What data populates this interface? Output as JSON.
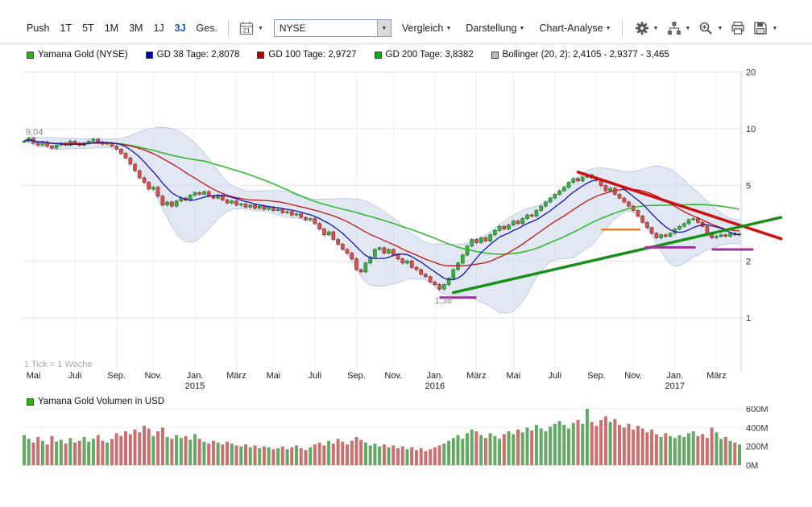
{
  "toolbar": {
    "push_label": "Push",
    "periods": [
      {
        "label": "1T",
        "selected": false
      },
      {
        "label": "5T",
        "selected": false
      },
      {
        "label": "1M",
        "selected": false
      },
      {
        "label": "3M",
        "selected": false
      },
      {
        "label": "1J",
        "selected": false
      },
      {
        "label": "3J",
        "selected": true
      },
      {
        "label": "Ges.",
        "selected": false
      }
    ],
    "calendar_day": "21",
    "exchange_select": {
      "value": "NYSE"
    },
    "menus": [
      {
        "label": "Vergleich"
      },
      {
        "label": "Darstellung"
      },
      {
        "label": "Chart-Analyse"
      }
    ],
    "icon_buttons": [
      {
        "name": "settings",
        "caret": true
      },
      {
        "name": "chart-tools",
        "caret": true
      },
      {
        "name": "zoom-in",
        "caret": true
      },
      {
        "name": "print",
        "caret": false
      },
      {
        "name": "save",
        "caret": true
      }
    ]
  },
  "legend": {
    "items": [
      {
        "label": "Yamana Gold (NYSE)",
        "color": "#2db212"
      },
      {
        "label": "GD 38 Tage: 2,8078",
        "color": "#0000b4"
      },
      {
        "label": "GD 100 Tage: 2,9727",
        "color": "#b40000"
      },
      {
        "label": "GD 200 Tage: 3,8382",
        "color": "#00b400"
      },
      {
        "label": "Bollinger (20, 2): 2,4105 - 2,9377 - 3,465",
        "color": "#a9bad6"
      }
    ]
  },
  "chart_data": {
    "type": "candlestick",
    "x_unit_note": "1 Tick = 1 Woche",
    "y_scale": "log",
    "y_axis_side": "right",
    "y_ticks": [
      "20",
      "10",
      "5",
      "2",
      "1"
    ],
    "candle_up_color": "#3fae46",
    "candle_down_color": "#d25454",
    "x_ticks": [
      {
        "label": "Mai",
        "week": 2
      },
      {
        "label": "Juli",
        "week": 11
      },
      {
        "label": "Sep.",
        "week": 20
      },
      {
        "label": "Nov.",
        "week": 28
      },
      {
        "label": "Jan.",
        "year": "2015",
        "week": 37
      },
      {
        "label": "März",
        "week": 46
      },
      {
        "label": "Mai",
        "week": 54
      },
      {
        "label": "Juli",
        "week": 63
      },
      {
        "label": "Sep.",
        "week": 72
      },
      {
        "label": "Nov.",
        "week": 80
      },
      {
        "label": "Jan.",
        "year": "2016",
        "week": 89
      },
      {
        "label": "März",
        "week": 98
      },
      {
        "label": "Mai",
        "week": 106
      },
      {
        "label": "Juli",
        "week": 115
      },
      {
        "label": "Sep.",
        "week": 124
      },
      {
        "label": "Nov.",
        "week": 132
      },
      {
        "label": "Jan.",
        "year": "2017",
        "week": 141
      },
      {
        "label": "März",
        "week": 150
      }
    ],
    "weekly_closes": [
      8.6,
      8.9,
      8.4,
      8.2,
      8.5,
      8.1,
      7.9,
      8.2,
      8.4,
      8.2,
      8.6,
      8.4,
      8.2,
      8.4,
      8.6,
      8.8,
      8.5,
      8.3,
      8.4,
      8.1,
      7.8,
      7.4,
      7.0,
      6.5,
      6.0,
      5.5,
      5.2,
      4.8,
      4.9,
      4.4,
      3.95,
      4.1,
      3.9,
      4.15,
      4.3,
      4.2,
      4.45,
      4.6,
      4.5,
      4.65,
      4.4,
      4.3,
      4.45,
      4.2,
      4.05,
      4.15,
      3.95,
      4.0,
      3.85,
      3.95,
      3.8,
      3.9,
      3.75,
      3.85,
      3.7,
      3.75,
      3.6,
      3.65,
      3.5,
      3.55,
      3.4,
      3.3,
      3.35,
      3.15,
      2.95,
      2.75,
      2.85,
      2.6,
      2.45,
      2.3,
      2.2,
      2.05,
      1.8,
      1.75,
      1.95,
      2.1,
      2.3,
      2.35,
      2.2,
      2.3,
      2.15,
      2.05,
      1.95,
      2.0,
      1.85,
      1.8,
      1.7,
      1.65,
      1.55,
      1.5,
      1.42,
      1.5,
      1.62,
      1.8,
      1.95,
      2.15,
      2.4,
      2.6,
      2.5,
      2.65,
      2.55,
      2.75,
      2.9,
      3.05,
      2.95,
      3.1,
      3.25,
      3.15,
      3.35,
      3.5,
      3.45,
      3.7,
      3.9,
      4.1,
      4.3,
      4.5,
      4.7,
      4.9,
      5.2,
      5.45,
      5.3,
      5.55,
      5.7,
      5.5,
      5.35,
      5.0,
      4.7,
      4.85,
      4.5,
      4.3,
      4.1,
      3.9,
      3.7,
      3.45,
      3.2,
      3.0,
      2.8,
      2.65,
      2.75,
      2.7,
      2.8,
      2.95,
      3.05,
      3.15,
      3.3,
      3.35,
      3.2,
      3.05,
      2.8,
      2.65,
      2.7,
      2.75,
      2.7,
      2.8,
      2.75,
      2.78
    ],
    "indicators": {
      "gd38": {
        "label": "GD 38 Tage",
        "value": "2,8078",
        "weeks": 8,
        "color": "#1414b4"
      },
      "gd100": {
        "label": "GD 100 Tage",
        "value": "2,9727",
        "weeks": 20,
        "color": "#c81414"
      },
      "gd200": {
        "label": "GD 200 Tage",
        "value": "3,8382",
        "weeks": 40,
        "color": "#33bb33"
      },
      "bollinger": {
        "label": "Bollinger (20, 2)",
        "values": "2,4105 - 2,9377 - 3,465",
        "weeks": 20,
        "fill": "#c9d5ea",
        "edge": "#afc0dd"
      }
    },
    "annotations": {
      "high_label": {
        "text": "9,04",
        "week": 0,
        "price": 9.04
      },
      "low_label": {
        "text": "1,38",
        "week": 90,
        "price": 1.38
      },
      "trendlines": [
        {
          "name": "resistance-trendline",
          "color": "#cc1111",
          "w1": 120,
          "p1": 5.9,
          "w2": 164,
          "p2": 2.62
        },
        {
          "name": "support-trendline",
          "color": "#189018",
          "w1": 93,
          "p1": 1.36,
          "w2": 164,
          "p2": 3.4
        }
      ],
      "h_segments": [
        {
          "name": "support-mark-1",
          "color": "#993399",
          "w1": 90,
          "w2": 98,
          "p": 1.28,
          "width": 3
        },
        {
          "name": "support-mark-2",
          "color": "#993399",
          "w1": 134.5,
          "w2": 145.5,
          "p": 2.36,
          "width": 3
        },
        {
          "name": "support-mark-3",
          "color": "#993399",
          "w1": 149,
          "w2": 158,
          "p": 2.3,
          "width": 3
        },
        {
          "name": "resistance-mark",
          "color": "#e08030",
          "w1": 125,
          "w2": 133.5,
          "p": 2.93,
          "width": 2.5
        }
      ]
    }
  },
  "volume_data": {
    "type": "bar",
    "legend": "Yamana Gold Volumen in USD",
    "legend_color": "#2db212",
    "color_up": "#63a963",
    "color_down": "#c97070",
    "unit": "M",
    "y_ticks": [
      "600M",
      "400M",
      "200M",
      "0M"
    ],
    "values": [
      320,
      280,
      240,
      300,
      260,
      220,
      310,
      250,
      270,
      230,
      290,
      240,
      260,
      300,
      250,
      280,
      320,
      260,
      240,
      280,
      340,
      310,
      360,
      330,
      380,
      350,
      420,
      390,
      310,
      360,
      400,
      300,
      280,
      320,
      290,
      310,
      270,
      330,
      280,
      250,
      230,
      260,
      240,
      220,
      250,
      230,
      210,
      200,
      220,
      190,
      210,
      180,
      200,
      190,
      170,
      180,
      200,
      170,
      190,
      210,
      180,
      160,
      190,
      220,
      240,
      210,
      260,
      230,
      280,
      250,
      220,
      260,
      300,
      270,
      240,
      210,
      230,
      200,
      220,
      190,
      210,
      180,
      200,
      170,
      190,
      160,
      180,
      150,
      170,
      190,
      210,
      230,
      260,
      290,
      320,
      280,
      340,
      380,
      360,
      320,
      290,
      340,
      310,
      280,
      330,
      360,
      330,
      380,
      350,
      400,
      370,
      430,
      390,
      360,
      410,
      440,
      470,
      430,
      390,
      450,
      480,
      440,
      600,
      460,
      420,
      480,
      520,
      460,
      490,
      430,
      400,
      440,
      380,
      420,
      390,
      350,
      380,
      330,
      300,
      340,
      310,
      290,
      320,
      300,
      340,
      360,
      310,
      330,
      290,
      400,
      350,
      280,
      300,
      260,
      240,
      220
    ]
  }
}
